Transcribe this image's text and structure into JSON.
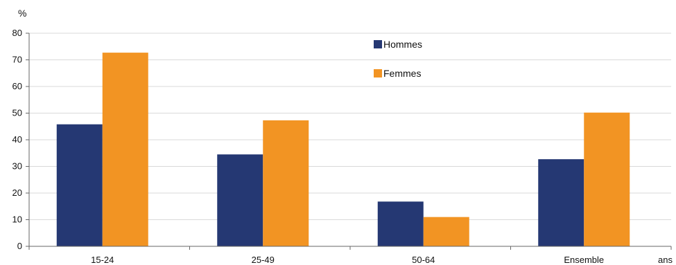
{
  "chart_data": {
    "type": "bar",
    "title": "",
    "ylabel": "%",
    "xlabel": "ans",
    "ylim": [
      0,
      80
    ],
    "yticks": [
      0,
      10,
      20,
      30,
      40,
      50,
      60,
      70,
      80
    ],
    "grid": true,
    "legend_position": "top-center",
    "categories": [
      "15-24",
      "25-49",
      "50-64",
      "Ensemble"
    ],
    "series": [
      {
        "name": "Hommes",
        "color": "#253873",
        "values": [
          45.8,
          34.5,
          16.8,
          32.7
        ]
      },
      {
        "name": "Femmes",
        "color": "#f29423",
        "values": [
          72.7,
          47.3,
          11.0,
          50.2
        ]
      }
    ]
  }
}
